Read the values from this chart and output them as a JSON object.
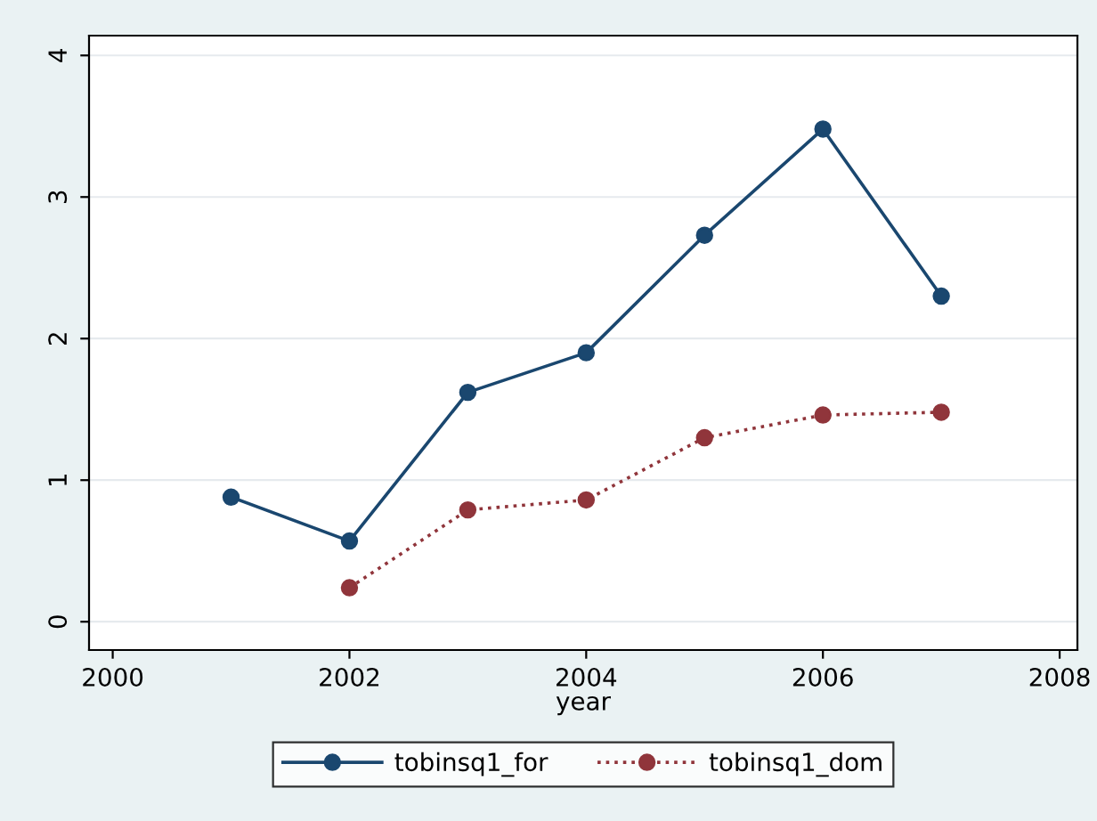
{
  "chart_data": {
    "type": "line",
    "xlabel": "year",
    "x": [
      2001,
      2002,
      2003,
      2004,
      2005,
      2006,
      2007
    ],
    "series": [
      {
        "name": "tobinsq1_for",
        "color": "#1a476f",
        "line_style": "solid",
        "values": [
          0.88,
          0.57,
          1.62,
          1.9,
          2.73,
          3.48,
          2.3
        ]
      },
      {
        "name": "tobinsq1_dom",
        "color": "#90353b",
        "line_style": "dotted",
        "values": [
          null,
          0.24,
          0.79,
          0.86,
          1.3,
          1.46,
          1.48
        ]
      }
    ],
    "xlim": [
      1999.8,
      2008.15
    ],
    "xticks": [
      2000,
      2002,
      2004,
      2006,
      2008
    ],
    "ylim": [
      -0.2,
      4.14
    ],
    "yticks": [
      0,
      1,
      2,
      3,
      4
    ],
    "grid": "y",
    "legend": "bottom",
    "marker": "circle"
  }
}
